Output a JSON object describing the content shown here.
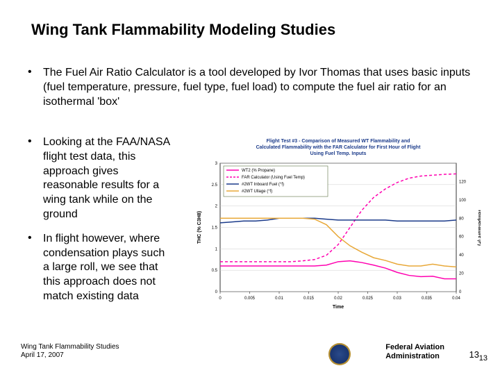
{
  "title": "Wing Tank Flammability Modeling Studies",
  "bullets_top": [
    "The Fuel Air Ratio Calculator is a tool developed by Ivor Thomas that uses basic inputs (fuel temperature, pressure, fuel type, fuel load) to compute the fuel air ratio for an isothermal 'box'"
  ],
  "bullets_left": [
    "Looking at the FAA/NASA flight test data, this approach gives reasonable results for a wing tank while on the ground",
    "In flight however, where condensation plays such a large roll, we see that this approach does not match existing data"
  ],
  "footer": {
    "study": "Wing Tank Flammability Studies",
    "date": "April 17, 2007",
    "agency_line1": "Federal Aviation",
    "agency_line2": "Administration",
    "page1": "13",
    "page2": "13"
  },
  "chart": {
    "type": "line",
    "title_line1": "Flight Test #3 - Comparison of Measured WT Flammability and",
    "title_line2": "Calculated Flammability with the FAR Calculator for First Hour of Flight",
    "title_line3": "Using Fuel Temp. Inputs",
    "title_fontsize": 7,
    "title_color": "#1a3a8a",
    "background_color": "#ffffff",
    "plot_border_color": "#000000",
    "grid_color": "#cccccc",
    "x_axis": {
      "label": "Time",
      "label_fontsize": 7,
      "min": 0,
      "max": 0.04,
      "ticks": [
        0,
        0.005,
        0.01,
        0.015,
        0.02,
        0.025,
        0.03,
        0.035,
        0.04
      ],
      "tick_fontsize": 6
    },
    "y_axis_left": {
      "label": "THC (% C3H8)",
      "label_fontsize": 7,
      "min": 0,
      "max": 3,
      "ticks": [
        0,
        0.5,
        1,
        1.5,
        2,
        2.5,
        3
      ],
      "tick_fontsize": 6
    },
    "y_axis_right": {
      "label": "Temperature (F)",
      "label_fontsize": 7,
      "min": 0,
      "max": 140,
      "ticks": [
        0,
        20,
        40,
        60,
        80,
        100,
        120
      ],
      "tick_fontsize": 6
    },
    "legend": {
      "position": "top-left-inside",
      "fontsize": 6,
      "box_border_color": "#5a7040",
      "items": [
        {
          "label": "WT2 (% Propane)",
          "color": "#ff00b0",
          "style": "solid"
        },
        {
          "label": "FAR Calculator (Using Fuel Temp)",
          "color": "#ff00b0",
          "style": "dash"
        },
        {
          "label": "#2WT Inboard Fuel (°f)",
          "color": "#1a3a8a",
          "style": "solid"
        },
        {
          "label": "#2WT Ullage (°f)",
          "color": "#e8a838",
          "style": "solid"
        }
      ]
    },
    "series": [
      {
        "name": "WT2",
        "axis": "left",
        "color": "#ff00b0",
        "style": "solid",
        "width": 1.5,
        "data": [
          [
            0,
            0.6
          ],
          [
            0.002,
            0.6
          ],
          [
            0.004,
            0.6
          ],
          [
            0.006,
            0.6
          ],
          [
            0.008,
            0.6
          ],
          [
            0.01,
            0.6
          ],
          [
            0.012,
            0.6
          ],
          [
            0.014,
            0.6
          ],
          [
            0.016,
            0.6
          ],
          [
            0.018,
            0.62
          ],
          [
            0.02,
            0.7
          ],
          [
            0.022,
            0.72
          ],
          [
            0.024,
            0.68
          ],
          [
            0.026,
            0.62
          ],
          [
            0.028,
            0.55
          ],
          [
            0.03,
            0.45
          ],
          [
            0.032,
            0.38
          ],
          [
            0.034,
            0.35
          ],
          [
            0.036,
            0.36
          ],
          [
            0.038,
            0.3
          ],
          [
            0.04,
            0.3
          ]
        ]
      },
      {
        "name": "FAR Calculator",
        "axis": "left",
        "color": "#ff00b0",
        "style": "dash",
        "width": 1.5,
        "data": [
          [
            0,
            0.7
          ],
          [
            0.002,
            0.7
          ],
          [
            0.004,
            0.7
          ],
          [
            0.006,
            0.7
          ],
          [
            0.008,
            0.7
          ],
          [
            0.01,
            0.7
          ],
          [
            0.012,
            0.7
          ],
          [
            0.014,
            0.72
          ],
          [
            0.016,
            0.75
          ],
          [
            0.018,
            0.85
          ],
          [
            0.02,
            1.1
          ],
          [
            0.022,
            1.5
          ],
          [
            0.024,
            1.9
          ],
          [
            0.026,
            2.2
          ],
          [
            0.028,
            2.4
          ],
          [
            0.03,
            2.55
          ],
          [
            0.032,
            2.65
          ],
          [
            0.034,
            2.7
          ],
          [
            0.036,
            2.72
          ],
          [
            0.038,
            2.74
          ],
          [
            0.04,
            2.75
          ]
        ]
      },
      {
        "name": "Inboard Fuel",
        "axis": "right",
        "color": "#1a3a8a",
        "style": "solid",
        "width": 1.5,
        "data": [
          [
            0,
            75
          ],
          [
            0.002,
            76
          ],
          [
            0.004,
            77
          ],
          [
            0.006,
            77
          ],
          [
            0.008,
            78
          ],
          [
            0.01,
            80
          ],
          [
            0.012,
            80
          ],
          [
            0.014,
            80
          ],
          [
            0.016,
            80
          ],
          [
            0.018,
            79
          ],
          [
            0.02,
            78
          ],
          [
            0.022,
            78
          ],
          [
            0.024,
            78
          ],
          [
            0.026,
            78
          ],
          [
            0.028,
            78
          ],
          [
            0.03,
            77
          ],
          [
            0.032,
            77
          ],
          [
            0.034,
            77
          ],
          [
            0.036,
            77
          ],
          [
            0.038,
            77
          ],
          [
            0.04,
            78
          ]
        ]
      },
      {
        "name": "Ullage",
        "axis": "right",
        "color": "#e8a838",
        "style": "solid",
        "width": 1.5,
        "data": [
          [
            0,
            80
          ],
          [
            0.002,
            80
          ],
          [
            0.004,
            80
          ],
          [
            0.006,
            80
          ],
          [
            0.008,
            80
          ],
          [
            0.01,
            80
          ],
          [
            0.012,
            80
          ],
          [
            0.014,
            80
          ],
          [
            0.016,
            79
          ],
          [
            0.018,
            73
          ],
          [
            0.02,
            60
          ],
          [
            0.022,
            50
          ],
          [
            0.024,
            43
          ],
          [
            0.026,
            37
          ],
          [
            0.028,
            34
          ],
          [
            0.03,
            30
          ],
          [
            0.032,
            28
          ],
          [
            0.034,
            28
          ],
          [
            0.036,
            30
          ],
          [
            0.038,
            28
          ],
          [
            0.04,
            27
          ]
        ]
      }
    ]
  }
}
